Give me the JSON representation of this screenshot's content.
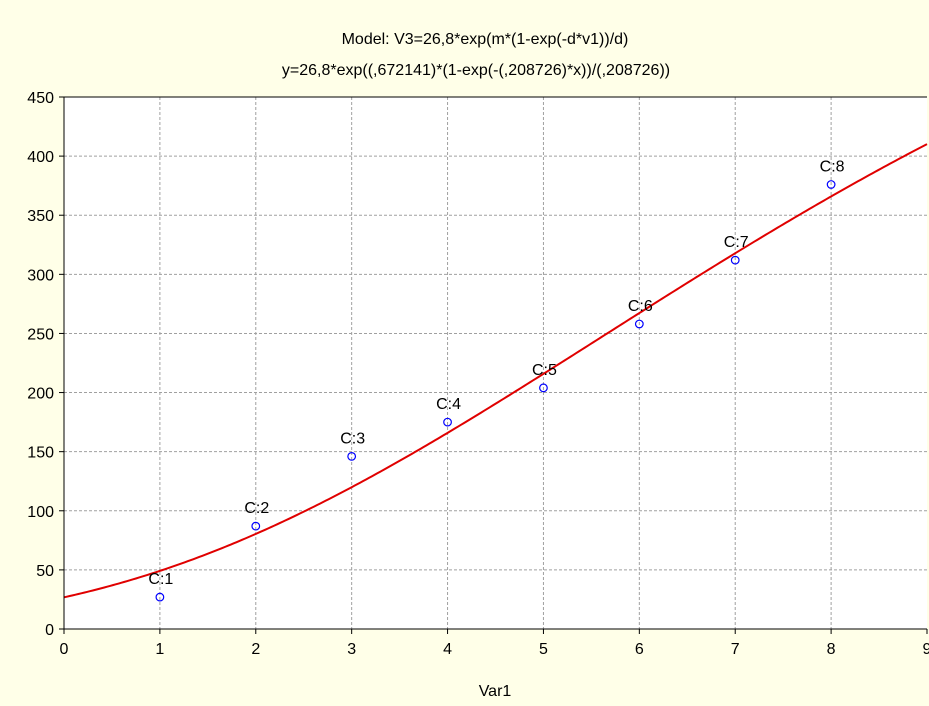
{
  "chart_data": {
    "type": "scatter",
    "title": "Model: V3=26,8*exp(m*(1-exp(-d*v1))/d)",
    "subtitle": "y=26,8*exp((,672141)*(1-exp(-(,208726)*x))/(,208726))",
    "xlabel": "Var1",
    "ylabel": "",
    "xlim": [
      0,
      9
    ],
    "ylim": [
      0,
      450
    ],
    "x_ticks": [
      "0",
      "1",
      "2",
      "3",
      "4",
      "5",
      "6",
      "7",
      "8",
      "9"
    ],
    "y_ticks": [
      "0",
      "50",
      "100",
      "150",
      "200",
      "250",
      "300",
      "350",
      "400",
      "450"
    ],
    "grid": true,
    "points": [
      {
        "label": "C:1",
        "x": 1,
        "y": 27
      },
      {
        "label": "C:2",
        "x": 2,
        "y": 87
      },
      {
        "label": "C:3",
        "x": 3,
        "y": 146
      },
      {
        "label": "C:4",
        "x": 4,
        "y": 175
      },
      {
        "label": "C:5",
        "x": 5,
        "y": 204
      },
      {
        "label": "C:6",
        "x": 6,
        "y": 258
      },
      {
        "label": "C:7",
        "x": 7,
        "y": 312
      },
      {
        "label": "C:8",
        "x": 8,
        "y": 376
      }
    ],
    "model": {
      "a": 26.8,
      "m": 0.672141,
      "d": 0.208726
    },
    "colors": {
      "points": "#0000FF",
      "curve": "#E00000",
      "grid": "#A0A0A0",
      "plot_bg": "#FFFFFF",
      "page_bg": "#FFFFE8"
    }
  }
}
